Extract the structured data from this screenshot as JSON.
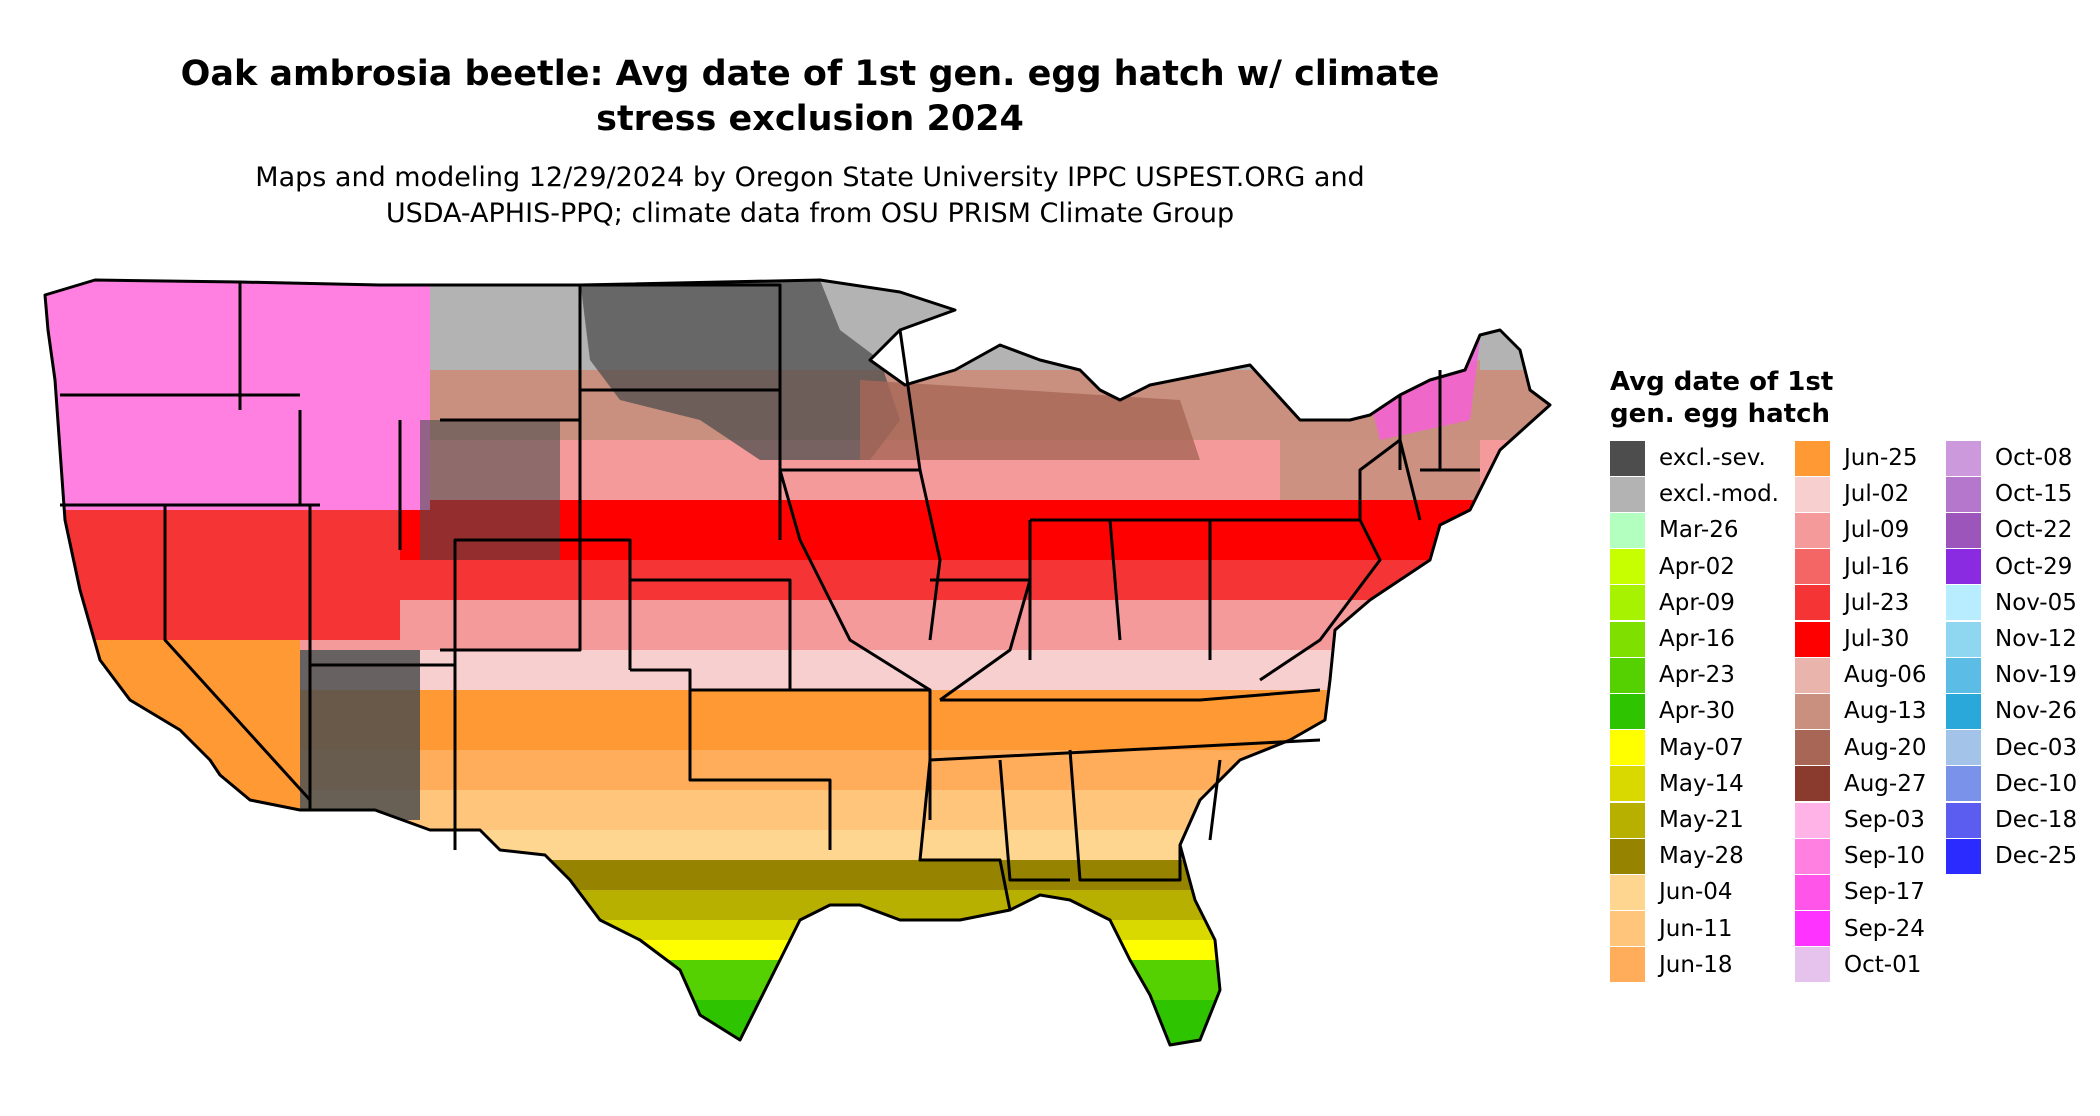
{
  "title_line1": "Oak ambrosia beetle: Avg date of 1st gen. egg hatch w/ climate",
  "title_line2": "stress exclusion 2024",
  "subtitle_line1": "Maps and modeling 12/29/2024 by Oregon State University IPPC USPEST.ORG and",
  "subtitle_line2": "USDA-APHIS-PPQ; climate data from OSU PRISM Climate Group",
  "legend": {
    "title_line1": "Avg date of 1st",
    "title_line2": "gen. egg hatch",
    "items": [
      {
        "label": "excl.-sev.",
        "color": "#4d4d4d"
      },
      {
        "label": "excl.-mod.",
        "color": "#b3b3b3"
      },
      {
        "label": "Mar-26",
        "color": "#b3ffbf"
      },
      {
        "label": "Apr-02",
        "color": "#c8ff00"
      },
      {
        "label": "Apr-09",
        "color": "#a6f200"
      },
      {
        "label": "Apr-16",
        "color": "#7fe000"
      },
      {
        "label": "Apr-23",
        "color": "#55d000"
      },
      {
        "label": "Apr-30",
        "color": "#2ec400"
      },
      {
        "label": "May-07",
        "color": "#ffff00"
      },
      {
        "label": "May-14",
        "color": "#d9d900"
      },
      {
        "label": "May-21",
        "color": "#b8b000"
      },
      {
        "label": "May-28",
        "color": "#968400"
      },
      {
        "label": "Jun-04",
        "color": "#ffd68f"
      },
      {
        "label": "Jun-11",
        "color": "#ffc57a"
      },
      {
        "label": "Jun-18",
        "color": "#ffad5a"
      },
      {
        "label": "Jun-25",
        "color": "#ff9933"
      },
      {
        "label": "Jul-02",
        "color": "#f7cfcf"
      },
      {
        "label": "Jul-09",
        "color": "#f49a9a"
      },
      {
        "label": "Jul-16",
        "color": "#f46666"
      },
      {
        "label": "Jul-23",
        "color": "#f53535"
      },
      {
        "label": "Jul-30",
        "color": "#ff0000"
      },
      {
        "label": "Aug-06",
        "color": "#e8b4ac"
      },
      {
        "label": "Aug-13",
        "color": "#c99080"
      },
      {
        "label": "Aug-20",
        "color": "#a86656"
      },
      {
        "label": "Aug-27",
        "color": "#8b3a2e"
      },
      {
        "label": "Sep-03",
        "color": "#ffb3e6"
      },
      {
        "label": "Sep-10",
        "color": "#ff80e0"
      },
      {
        "label": "Sep-17",
        "color": "#ff55e8"
      },
      {
        "label": "Sep-24",
        "color": "#ff33ff"
      },
      {
        "label": "Oct-01",
        "color": "#e6c3ec"
      },
      {
        "label": "Oct-08",
        "color": "#cc99dd"
      },
      {
        "label": "Oct-15",
        "color": "#b477cc"
      },
      {
        "label": "Oct-22",
        "color": "#9c55bb"
      },
      {
        "label": "Oct-29",
        "color": "#8a2be2"
      },
      {
        "label": "Nov-05",
        "color": "#b8ecff"
      },
      {
        "label": "Nov-12",
        "color": "#8fd6f0"
      },
      {
        "label": "Nov-19",
        "color": "#5bbde6"
      },
      {
        "label": "Nov-26",
        "color": "#29a8d9"
      },
      {
        "label": "Dec-03",
        "color": "#a3c4e8"
      },
      {
        "label": "Dec-10",
        "color": "#7b92ea"
      },
      {
        "label": "Dec-18",
        "color": "#5b5cf0"
      },
      {
        "label": "Dec-25",
        "color": "#2b2bff"
      }
    ]
  }
}
